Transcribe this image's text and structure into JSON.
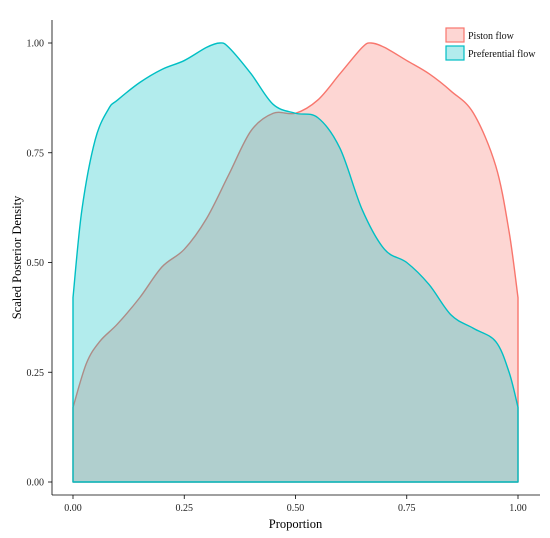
{
  "chart_data": {
    "type": "area",
    "xlabel": "Proportion",
    "ylabel": "Scaled Posterior Density",
    "xlim": [
      0,
      1
    ],
    "ylim": [
      0,
      1
    ],
    "x_ticks": [
      0,
      0.25,
      0.5,
      0.75,
      1
    ],
    "y_ticks": [
      0,
      0.25,
      0.5,
      0.75,
      1
    ],
    "x_tick_labels": [
      "0.00",
      "0.25",
      "0.50",
      "0.75",
      "1.00"
    ],
    "y_tick_labels": [
      "0.00",
      "0.25",
      "0.50",
      "0.75",
      "1.00"
    ],
    "grid": false,
    "legend_position": "top-right",
    "series": [
      {
        "name": "Piston flow",
        "fill": "#f8766d",
        "stroke": "#f8766d",
        "x": [
          0,
          0.03,
          0.06,
          0.1,
          0.15,
          0.2,
          0.25,
          0.3,
          0.35,
          0.4,
          0.45,
          0.5,
          0.55,
          0.6,
          0.65,
          0.67,
          0.7,
          0.75,
          0.8,
          0.85,
          0.9,
          0.95,
          0.98,
          1
        ],
        "y": [
          0.17,
          0.27,
          0.32,
          0.36,
          0.42,
          0.49,
          0.53,
          0.6,
          0.7,
          0.8,
          0.84,
          0.84,
          0.87,
          0.93,
          0.99,
          1.0,
          0.99,
          0.96,
          0.93,
          0.89,
          0.84,
          0.72,
          0.57,
          0.42
        ]
      },
      {
        "name": "Preferential flow",
        "fill": "#00bfc4",
        "stroke": "#00bfc4",
        "x": [
          0,
          0.02,
          0.05,
          0.08,
          0.1,
          0.15,
          0.2,
          0.25,
          0.3,
          0.33,
          0.35,
          0.4,
          0.45,
          0.5,
          0.55,
          0.6,
          0.65,
          0.7,
          0.75,
          0.8,
          0.85,
          0.9,
          0.95,
          0.98,
          1
        ],
        "y": [
          0.42,
          0.62,
          0.78,
          0.85,
          0.87,
          0.91,
          0.94,
          0.96,
          0.99,
          1.0,
          0.99,
          0.93,
          0.86,
          0.84,
          0.83,
          0.76,
          0.62,
          0.53,
          0.5,
          0.45,
          0.38,
          0.35,
          0.32,
          0.25,
          0.17
        ]
      }
    ]
  }
}
